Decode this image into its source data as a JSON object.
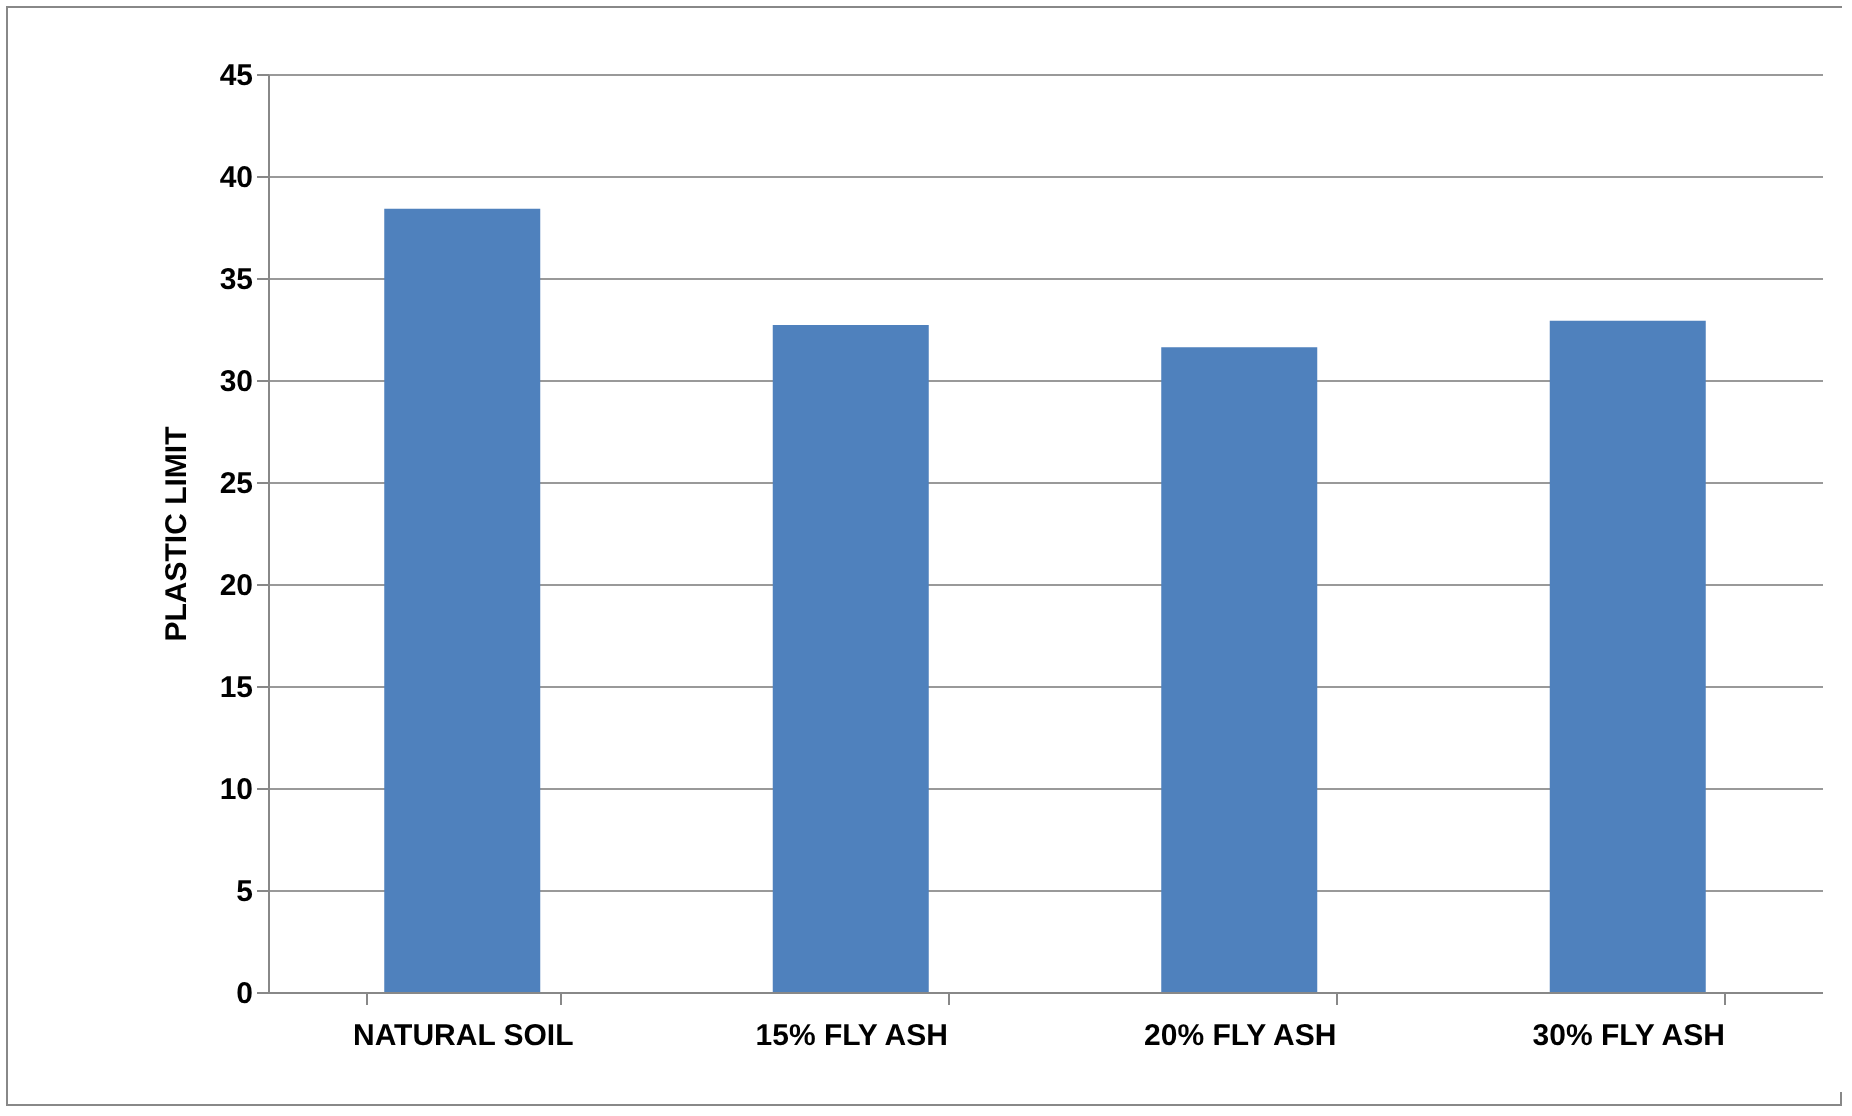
{
  "chart_data": {
    "type": "bar",
    "ylabel": "PLASTIC LIMIT",
    "categories": [
      "NATURAL SOIL",
      "15% FLY ASH",
      "20% FLY ASH",
      "30% FLY ASH"
    ],
    "values": [
      38.4,
      32.7,
      31.6,
      32.9
    ],
    "color": "#4f81bd",
    "ylim": [
      0,
      45
    ],
    "yticks": [
      0,
      5,
      10,
      15,
      20,
      25,
      30,
      35,
      40,
      45
    ],
    "grid": "y"
  }
}
